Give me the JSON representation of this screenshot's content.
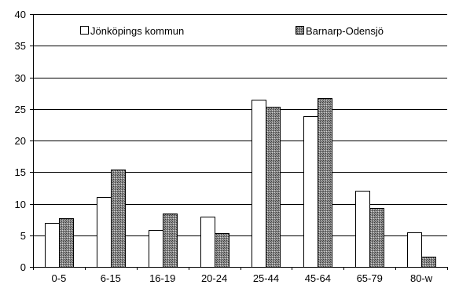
{
  "chart_data": {
    "type": "bar",
    "categories": [
      "0-5",
      "6-15",
      "16-19",
      "20-24",
      "25-44",
      "45-64",
      "65-79",
      "80-w"
    ],
    "series": [
      {
        "name": "Jönköpings kommun",
        "values": [
          7.0,
          11.1,
          5.8,
          8.0,
          26.5,
          23.9,
          12.1,
          5.5
        ],
        "color": "#ffffff"
      },
      {
        "name": "Barnarp-Odensjö",
        "values": [
          7.7,
          15.4,
          8.4,
          5.3,
          25.3,
          26.7,
          9.3,
          1.6
        ],
        "color": "#8c8c8c"
      }
    ],
    "title": "",
    "xlabel": "",
    "ylabel": "",
    "ylim": [
      0,
      40
    ],
    "yticks": [
      "0",
      "5",
      "10",
      "15",
      "20",
      "25",
      "30",
      "35",
      "40"
    ],
    "grid": "horizontal",
    "legend_position": "top"
  }
}
